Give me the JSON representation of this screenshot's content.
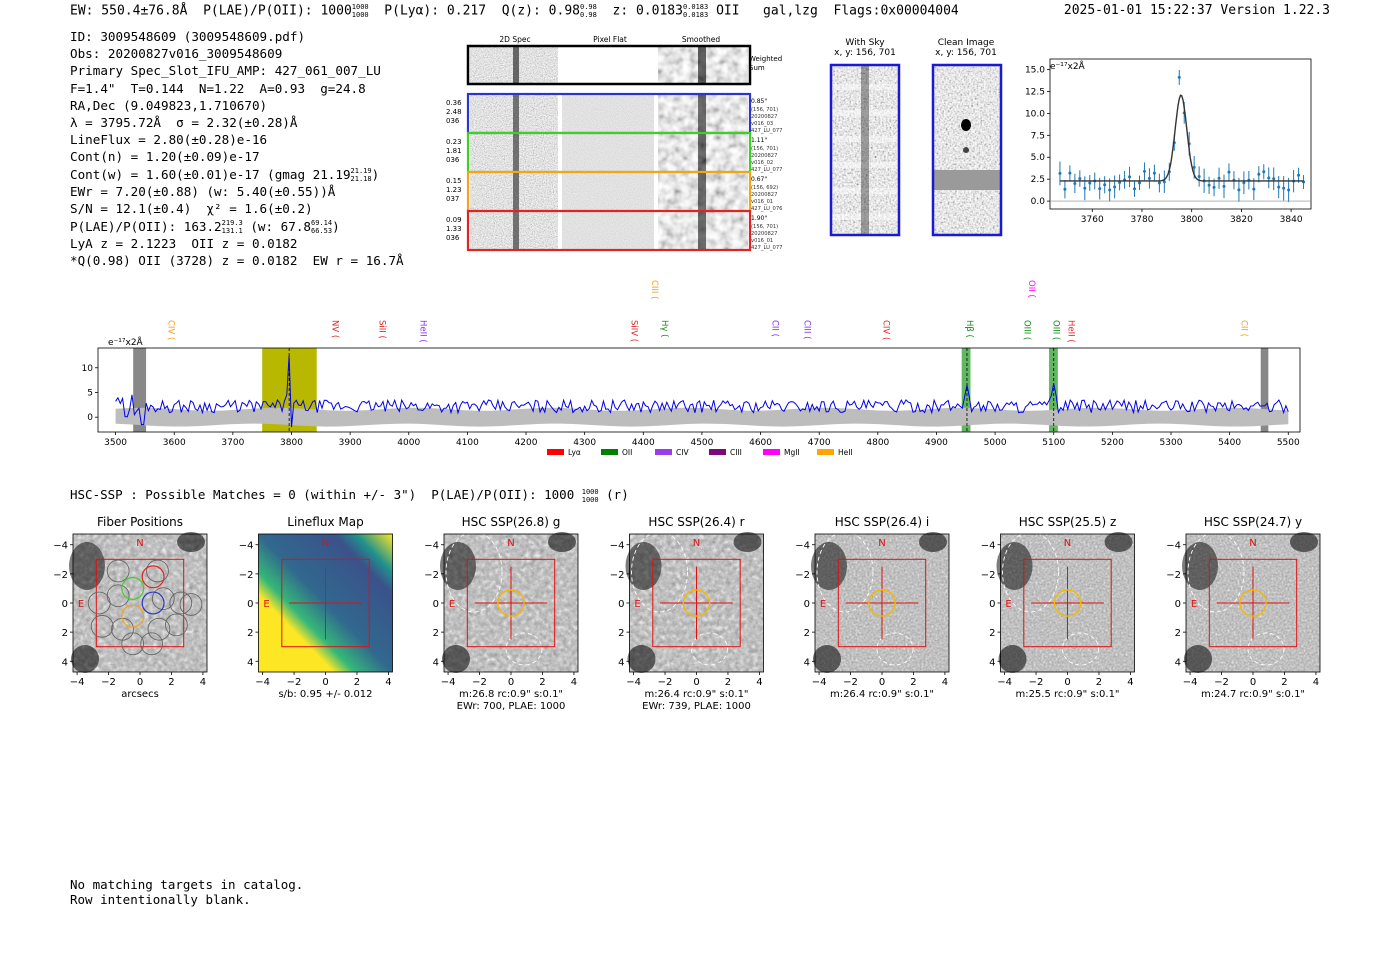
{
  "header": {
    "ew": "EW: 550.4±76.8Å",
    "plae_label": "P(LAE)/P(OII): 1000",
    "plae_sup": "1000",
    "plae_sub": "1000",
    "plya": "P(Lyα): 0.217",
    "qz_label": "Q(z): 0.98",
    "qz_sup": "0.98",
    "qz_sub": "0.98",
    "z_label": "z: 0.0183",
    "z_sup": "0.0183",
    "z_sub": "0.0183",
    "z_line": "OII",
    "tags": "gal,lzg",
    "flags": "Flags:0x00004004",
    "timestamp": "2025-01-01 15:22:37",
    "version": "Version 1.22.3"
  },
  "info": {
    "id": "ID: 3009548609 (3009548609.pdf)",
    "obs": "Obs: 20200827v016_3009548609",
    "primary": "Primary Spec_Slot_IFU_AMP: 427_061_007_LU",
    "fwhm": "F=1.4\"  T=0.144  N=1.22  A=0.93  g=24.8",
    "radec": "RA,Dec (9.049823,1.710670)",
    "lambda": "λ = 3795.72Å  σ = 2.32(±0.28)Å",
    "lineflux": "LineFlux = 2.80(±0.28)e-16",
    "contn": "Cont(n) = 1.20(±0.09)e-17",
    "contw": "Cont(w) = 1.60(±0.01)e-17 (gmag 21.19",
    "contw_sup": "21.19",
    "contw_sub": "21.18",
    "contw_end": ")",
    "ewr": "EWr = 7.20(±0.88) (w: 5.40(±0.55))Å",
    "sn": "S/N = 12.1(±0.4)  χ² = 1.6(±0.2)",
    "plae": "P(LAE)/P(OII): 163.2",
    "plae_sup": "219.3",
    "plae_sub": "131.1",
    "plae_w": "(w: 67.8",
    "plae_w_sup": "69.14",
    "plae_w_sub": "66.53",
    "plae_end": ")",
    "lya": "LyA z = 2.1223  OII z = 0.0182",
    "q": "*Q(0.98) OII (3728) z = 0.0182  EW r = 16.7Å"
  },
  "spec2d": {
    "headers": [
      "2D Spec",
      "Pixel Flat",
      "Smoothed"
    ],
    "weighted": "Weighted Sum",
    "rows": [
      {
        "left": [
          "0.36",
          "2.48",
          "036"
        ],
        "right": [
          "0.85\"",
          "(156, 701)",
          "20200827",
          "v016_03",
          "427_LU_077"
        ],
        "color": "#2b35c6"
      },
      {
        "left": [
          "0.23",
          "1.81",
          "036"
        ],
        "right": [
          "1.11\"",
          "(156, 701)",
          "20200827",
          "v016_02",
          "427_LU_077"
        ],
        "color": "#3fcf26"
      },
      {
        "left": [
          "0.15",
          "1.23",
          "037"
        ],
        "right": [
          "0.67\"",
          "(156, 692)",
          "20200827",
          "v016_01",
          "427_LU_076"
        ],
        "color": "#f2a51a"
      },
      {
        "left": [
          "0.09",
          "1.33",
          "036"
        ],
        "right": [
          "1.90\"",
          "(156, 701)",
          "20200827",
          "v016_01",
          "427_LU_077"
        ],
        "color": "#e02424"
      }
    ]
  },
  "cutouts": [
    {
      "title": "With Sky",
      "sub": "x, y: 156, 701"
    },
    {
      "title": "Clean Image",
      "sub": "x, y: 156, 701"
    }
  ],
  "zoom_plot": {
    "unit": "e⁻¹⁷x2Å",
    "yticks": [
      "0.0",
      "2.5",
      "5.0",
      "7.5",
      "10.0",
      "12.5",
      "15.0"
    ],
    "xticks": [
      "3760",
      "3780",
      "3800",
      "3820",
      "3840"
    ]
  },
  "full_spec": {
    "unit": "e⁻¹⁷x2Å",
    "yticks": [
      "0",
      "5",
      "10"
    ],
    "xticks": [
      "3500",
      "3600",
      "3700",
      "3800",
      "3900",
      "4000",
      "4100",
      "4200",
      "4300",
      "4400",
      "4500",
      "4600",
      "4700",
      "4800",
      "4900",
      "5000",
      "5100",
      "5200",
      "5300",
      "5400",
      "5500"
    ],
    "lines": [
      {
        "label": "CIV",
        "color": "#f0a020",
        "wave": 3590
      },
      {
        "label": "NV",
        "color": "#e02424",
        "wave": 3870
      },
      {
        "label": "SiII",
        "color": "#e02424",
        "wave": 3950
      },
      {
        "label": "HeII",
        "color": "#8a2be2",
        "wave": 4020
      },
      {
        "label": "SiIV",
        "color": "#e02424",
        "wave": 4380
      },
      {
        "label": "CIII",
        "color": "#f0a020",
        "wave": 4415
      },
      {
        "label": "Hγ",
        "color": "#108a10",
        "wave": 4432
      },
      {
        "label": "CII",
        "color": "#8a2be2",
        "wave": 4620
      },
      {
        "label": "CIII",
        "color": "#8a2be2",
        "wave": 4675
      },
      {
        "label": "CIV",
        "color": "#e02424",
        "wave": 4810
      },
      {
        "label": "Hβ",
        "color": "#108a10",
        "wave": 4952
      },
      {
        "label": "OIII",
        "color": "#108a10",
        "wave": 5050
      },
      {
        "label": "OII",
        "color": "#ff00ff",
        "wave": 5058
      },
      {
        "label": "OIII",
        "color": "#108a10",
        "wave": 5100
      },
      {
        "label": "HeII",
        "color": "#e02424",
        "wave": 5125
      },
      {
        "label": "CII",
        "color": "#f0a020",
        "wave": 5420
      }
    ],
    "legend": [
      {
        "label": "Lyα",
        "color": "#ff0000"
      },
      {
        "label": "OII",
        "color": "#008000"
      },
      {
        "label": "CIV",
        "color": "#9a3cf0"
      },
      {
        "label": "CIII",
        "color": "#7a0a7a"
      },
      {
        "label": "MgII",
        "color": "#ff00ff"
      },
      {
        "label": "HeII",
        "color": "#ffa500"
      }
    ]
  },
  "hsc": {
    "title": "HSC-SSP : Possible Matches = 0 (within +/- 3\")  P(LAE)/P(OII): 1000",
    "plae_sup": "1000",
    "plae_sub": "1000",
    "band": "(r)",
    "yticks": [
      "4",
      "2",
      "0",
      "−2",
      "−4"
    ],
    "xticks": [
      "−4",
      "−2",
      "0",
      "2",
      "4"
    ],
    "panels": [
      {
        "title": "Fiber Positions",
        "cap1": "arcsecs",
        "cap2": ""
      },
      {
        "title": "Lineflux Map",
        "cap1": "s/b: 0.95 +/- 0.012",
        "cap2": ""
      },
      {
        "title": "HSC SSP(26.8) g",
        "cap1": "m:26.8 rc:0.9\"  s:0.1\"",
        "cap2": "EWr: 700, PLAE: 1000"
      },
      {
        "title": "HSC SSP(26.4) r",
        "cap1": "m:26.4 rc:0.9\"  s:0.1\"",
        "cap2": "EWr: 739, PLAE: 1000"
      },
      {
        "title": "HSC SSP(26.4) i",
        "cap1": "m:26.4 rc:0.9\"  s:0.1\"",
        "cap2": ""
      },
      {
        "title": "HSC SSP(25.5) z",
        "cap1": "m:25.5 rc:0.9\"  s:0.1\"",
        "cap2": ""
      },
      {
        "title": "HSC SSP(24.7) y",
        "cap1": "m:24.7 rc:0.9\"  s:0.1\"",
        "cap2": ""
      }
    ],
    "n_label": "N",
    "e_label": "E"
  },
  "footer": {
    "line1": "No matching targets in catalog.",
    "line2": "Row intentionally blank."
  }
}
